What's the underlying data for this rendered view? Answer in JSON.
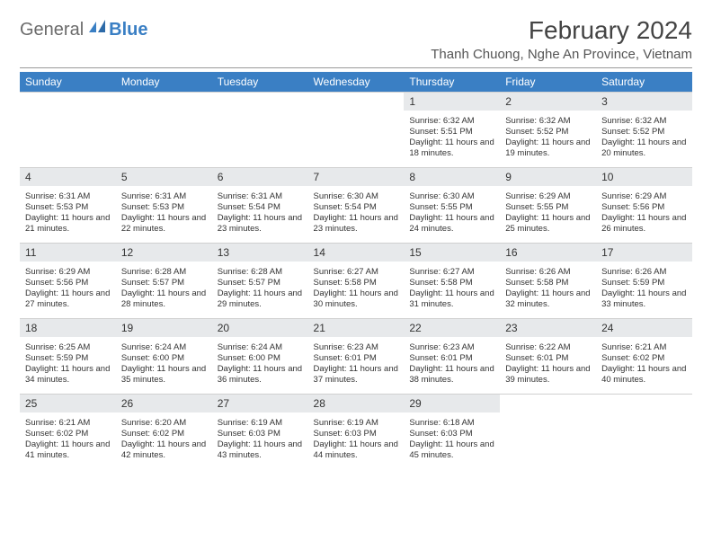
{
  "brand": {
    "word1": "General",
    "word2": "Blue",
    "word1_color": "#6b6b6b",
    "word2_color": "#3a7fc4"
  },
  "title": "February 2024",
  "location": "Thanh Chuong, Nghe An Province, Vietnam",
  "colors": {
    "header_bg": "#3a7fc4",
    "header_fg": "#ffffff",
    "daynum_bg": "#e7e9eb",
    "page_bg": "#ffffff",
    "text": "#333333"
  },
  "typography": {
    "title_fontsize": 28,
    "location_fontsize": 15,
    "daylabel_fontsize": 12,
    "cell_fontsize": 9.5
  },
  "columns": [
    "Sunday",
    "Monday",
    "Tuesday",
    "Wednesday",
    "Thursday",
    "Friday",
    "Saturday"
  ],
  "weeks": [
    {
      "nums": [
        "",
        "",
        "",
        "",
        "1",
        "2",
        "3"
      ],
      "cells": [
        "",
        "",
        "",
        "",
        "Sunrise: 6:32 AM\nSunset: 5:51 PM\nDaylight: 11 hours and 18 minutes.",
        "Sunrise: 6:32 AM\nSunset: 5:52 PM\nDaylight: 11 hours and 19 minutes.",
        "Sunrise: 6:32 AM\nSunset: 5:52 PM\nDaylight: 11 hours and 20 minutes."
      ]
    },
    {
      "nums": [
        "4",
        "5",
        "6",
        "7",
        "8",
        "9",
        "10"
      ],
      "cells": [
        "Sunrise: 6:31 AM\nSunset: 5:53 PM\nDaylight: 11 hours and 21 minutes.",
        "Sunrise: 6:31 AM\nSunset: 5:53 PM\nDaylight: 11 hours and 22 minutes.",
        "Sunrise: 6:31 AM\nSunset: 5:54 PM\nDaylight: 11 hours and 23 minutes.",
        "Sunrise: 6:30 AM\nSunset: 5:54 PM\nDaylight: 11 hours and 23 minutes.",
        "Sunrise: 6:30 AM\nSunset: 5:55 PM\nDaylight: 11 hours and 24 minutes.",
        "Sunrise: 6:29 AM\nSunset: 5:55 PM\nDaylight: 11 hours and 25 minutes.",
        "Sunrise: 6:29 AM\nSunset: 5:56 PM\nDaylight: 11 hours and 26 minutes."
      ]
    },
    {
      "nums": [
        "11",
        "12",
        "13",
        "14",
        "15",
        "16",
        "17"
      ],
      "cells": [
        "Sunrise: 6:29 AM\nSunset: 5:56 PM\nDaylight: 11 hours and 27 minutes.",
        "Sunrise: 6:28 AM\nSunset: 5:57 PM\nDaylight: 11 hours and 28 minutes.",
        "Sunrise: 6:28 AM\nSunset: 5:57 PM\nDaylight: 11 hours and 29 minutes.",
        "Sunrise: 6:27 AM\nSunset: 5:58 PM\nDaylight: 11 hours and 30 minutes.",
        "Sunrise: 6:27 AM\nSunset: 5:58 PM\nDaylight: 11 hours and 31 minutes.",
        "Sunrise: 6:26 AM\nSunset: 5:58 PM\nDaylight: 11 hours and 32 minutes.",
        "Sunrise: 6:26 AM\nSunset: 5:59 PM\nDaylight: 11 hours and 33 minutes."
      ]
    },
    {
      "nums": [
        "18",
        "19",
        "20",
        "21",
        "22",
        "23",
        "24"
      ],
      "cells": [
        "Sunrise: 6:25 AM\nSunset: 5:59 PM\nDaylight: 11 hours and 34 minutes.",
        "Sunrise: 6:24 AM\nSunset: 6:00 PM\nDaylight: 11 hours and 35 minutes.",
        "Sunrise: 6:24 AM\nSunset: 6:00 PM\nDaylight: 11 hours and 36 minutes.",
        "Sunrise: 6:23 AM\nSunset: 6:01 PM\nDaylight: 11 hours and 37 minutes.",
        "Sunrise: 6:23 AM\nSunset: 6:01 PM\nDaylight: 11 hours and 38 minutes.",
        "Sunrise: 6:22 AM\nSunset: 6:01 PM\nDaylight: 11 hours and 39 minutes.",
        "Sunrise: 6:21 AM\nSunset: 6:02 PM\nDaylight: 11 hours and 40 minutes."
      ]
    },
    {
      "nums": [
        "25",
        "26",
        "27",
        "28",
        "29",
        "",
        ""
      ],
      "cells": [
        "Sunrise: 6:21 AM\nSunset: 6:02 PM\nDaylight: 11 hours and 41 minutes.",
        "Sunrise: 6:20 AM\nSunset: 6:02 PM\nDaylight: 11 hours and 42 minutes.",
        "Sunrise: 6:19 AM\nSunset: 6:03 PM\nDaylight: 11 hours and 43 minutes.",
        "Sunrise: 6:19 AM\nSunset: 6:03 PM\nDaylight: 11 hours and 44 minutes.",
        "Sunrise: 6:18 AM\nSunset: 6:03 PM\nDaylight: 11 hours and 45 minutes.",
        "",
        ""
      ]
    }
  ]
}
